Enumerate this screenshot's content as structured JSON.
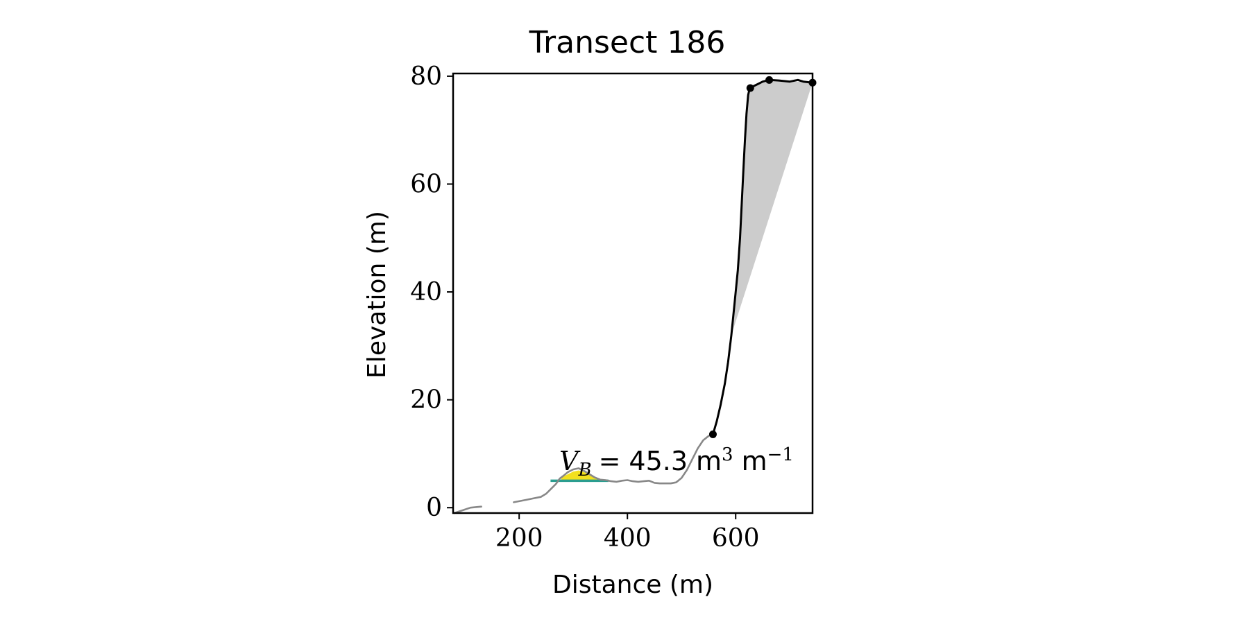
{
  "chart_data": {
    "type": "line",
    "title": "Transect 186",
    "xlabel": "Distance (m)",
    "ylabel": "Elevation (m)",
    "xlim": [
      78,
      742
    ],
    "ylim": [
      -1,
      80.5
    ],
    "xticks": [
      200,
      400,
      600
    ],
    "yticks": [
      0,
      20,
      40,
      60,
      80
    ],
    "grid": false,
    "annotation": {
      "prefix": "V",
      "subscript": "B",
      "equals": "=",
      "value": "45.3",
      "unit_1": "m",
      "unit_1_exponent": "3",
      "unit_2": "m",
      "unit_2_exponent": "−1"
    },
    "series": [
      {
        "role": "profile-gray-left",
        "color": "#888888",
        "x": [
          80,
          95,
          110,
          130
        ],
        "y": [
          -1,
          -0.5,
          0,
          0.2
        ]
      },
      {
        "role": "profile-gray",
        "color": "#888888",
        "x": [
          190,
          205,
          215,
          225,
          240,
          250,
          260,
          268,
          275,
          283,
          290,
          300,
          310,
          320,
          330,
          340,
          350,
          360,
          365,
          370,
          380,
          390,
          400,
          410,
          420,
          430,
          440,
          450,
          460,
          470,
          480,
          490,
          500,
          510,
          520,
          530,
          540,
          550,
          558
        ],
        "y": [
          1.0,
          1.3,
          1.5,
          1.7,
          2.0,
          2.6,
          3.6,
          4.4,
          5.4,
          6.0,
          6.6,
          7.1,
          7.3,
          6.8,
          6.2,
          5.6,
          5.2,
          5.1,
          5.0,
          4.9,
          4.8,
          5.0,
          5.1,
          4.9,
          4.8,
          4.9,
          5.0,
          4.6,
          4.5,
          4.5,
          4.5,
          4.7,
          5.5,
          7.0,
          9.0,
          11.0,
          12.5,
          13.3,
          13.6
        ]
      },
      {
        "role": "cliff-profile",
        "color": "#000000",
        "x": [
          558,
          565,
          572,
          580,
          586,
          592,
          598,
          604,
          608,
          611,
          614,
          617,
          620,
          623,
          626,
          630,
          640,
          650,
          662,
          680,
          700,
          715,
          725,
          742
        ],
        "y": [
          13.6,
          16.0,
          19.0,
          23.0,
          27.0,
          32.0,
          38.0,
          44.0,
          50.0,
          56.0,
          62.0,
          68.0,
          73.0,
          76.5,
          77.8,
          78.0,
          78.5,
          79.0,
          79.3,
          79.2,
          79.0,
          79.3,
          79.0,
          78.8
        ]
      }
    ],
    "markers": {
      "color": "#000000",
      "x": [
        558,
        627,
        662,
        742
      ],
      "y": [
        13.6,
        77.8,
        79.3,
        78.8
      ]
    },
    "shaded_region": {
      "color": "#cccccc",
      "x": [
        742,
        725,
        700,
        680,
        662,
        650,
        640,
        630,
        626,
        623,
        620,
        617,
        614,
        611,
        608,
        604,
        598,
        592
      ],
      "y": [
        78.8,
        79.0,
        79.0,
        79.2,
        79.3,
        79.0,
        78.5,
        78.0,
        77.8,
        76.5,
        73.0,
        68.0,
        62.0,
        56.0,
        50.0,
        44.0,
        38.0,
        32.0
      ]
    },
    "bar_volume": {
      "fill_color": "#f2e01e",
      "base_color": "#2a9d8f",
      "base_x": [
        258,
        365
      ],
      "base_y": 5.0,
      "top_x": [
        278,
        290,
        300,
        310,
        320,
        330,
        340,
        350,
        358
      ],
      "top_y": [
        5.6,
        6.2,
        6.7,
        6.9,
        6.6,
        6.1,
        5.6,
        5.3,
        5.1
      ]
    }
  }
}
